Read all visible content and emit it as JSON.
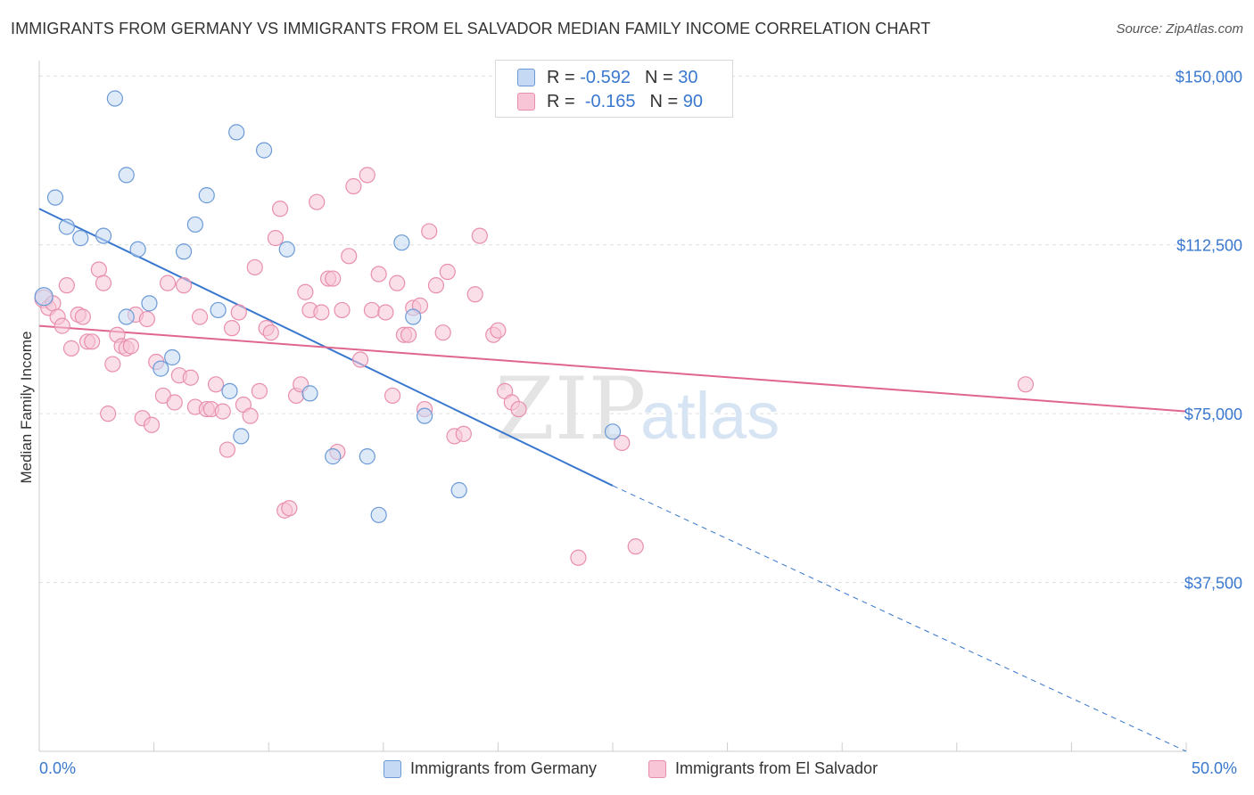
{
  "title": "IMMIGRANTS FROM GERMANY VS IMMIGRANTS FROM EL SALVADOR MEDIAN FAMILY INCOME CORRELATION CHART",
  "source": "Source: ZipAtlas.com",
  "watermark": {
    "zip": "ZIP",
    "atlas": "atlas"
  },
  "colors": {
    "blue": "#3a78cf",
    "blue_fill": "#c5d9f4",
    "blue_stroke": "#6b9ad6",
    "pink": "#e0668f",
    "pink_fill": "#f8c5d6",
    "pink_stroke": "#e88fae",
    "grid": "#dddddd"
  },
  "legend": {
    "blue": {
      "r_label": "R =",
      "r_value": "-0.592",
      "n_label": "N =",
      "n_value": "30"
    },
    "pink": {
      "r_label": "R =",
      "r_value": "-0.165",
      "n_label": "N =",
      "n_value": "90"
    }
  },
  "chart_data": {
    "type": "scatter",
    "title": "IMMIGRANTS FROM GERMANY VS IMMIGRANTS FROM EL SALVADOR MEDIAN FAMILY INCOME CORRELATION CHART",
    "xlabel": "",
    "ylabel": "Median Family Income",
    "xlim": [
      0,
      50
    ],
    "ylim": [
      0,
      155000
    ],
    "x_tick_labels": [
      "0.0%",
      "50.0%"
    ],
    "y_ticks": [
      37500,
      75000,
      112500,
      150000
    ],
    "y_tick_labels": [
      "$37,500",
      "$75,000",
      "$112,500",
      "$150,000"
    ],
    "series": [
      {
        "name": "Immigrants from Germany",
        "color": "blue",
        "points": [
          [
            0.2,
            101000
          ],
          [
            0.7,
            123000
          ],
          [
            1.2,
            116500
          ],
          [
            1.8,
            114000
          ],
          [
            2.8,
            114500
          ],
          [
            3.3,
            145000
          ],
          [
            3.8,
            128000
          ],
          [
            3.8,
            96500
          ],
          [
            4.3,
            111500
          ],
          [
            4.8,
            99500
          ],
          [
            5.3,
            85000
          ],
          [
            5.8,
            87500
          ],
          [
            6.3,
            111000
          ],
          [
            6.8,
            117000
          ],
          [
            7.3,
            123500
          ],
          [
            7.8,
            98000
          ],
          [
            8.3,
            80000
          ],
          [
            8.8,
            70000
          ],
          [
            8.6,
            137500
          ],
          [
            9.8,
            133500
          ],
          [
            10.8,
            111500
          ],
          [
            11.8,
            79500
          ],
          [
            12.8,
            65500
          ],
          [
            14.3,
            65500
          ],
          [
            14.8,
            52500
          ],
          [
            15.8,
            113000
          ],
          [
            16.3,
            96500
          ],
          [
            16.8,
            74500
          ],
          [
            18.3,
            58000
          ],
          [
            25.0,
            71000
          ]
        ],
        "trend": {
          "x0": 0.0,
          "y0": 120500,
          "x1": 25.0,
          "y1": 59000,
          "dash_to_x": 50.0,
          "dash_to_y": 0
        }
      },
      {
        "name": "Immigrants from El Salvador",
        "color": "pink",
        "points": [
          [
            0.2,
            100500
          ],
          [
            0.4,
            98500
          ],
          [
            0.6,
            99500
          ],
          [
            0.8,
            96500
          ],
          [
            1.0,
            94500
          ],
          [
            1.2,
            103500
          ],
          [
            1.4,
            89500
          ],
          [
            1.7,
            97000
          ],
          [
            1.9,
            96500
          ],
          [
            2.1,
            91000
          ],
          [
            2.3,
            91000
          ],
          [
            2.6,
            107000
          ],
          [
            2.8,
            104000
          ],
          [
            3.0,
            75000
          ],
          [
            3.2,
            86000
          ],
          [
            3.4,
            92500
          ],
          [
            3.6,
            90000
          ],
          [
            3.8,
            89500
          ],
          [
            4.0,
            90000
          ],
          [
            4.2,
            97000
          ],
          [
            4.5,
            74000
          ],
          [
            4.7,
            96000
          ],
          [
            4.9,
            72500
          ],
          [
            5.1,
            86500
          ],
          [
            5.4,
            79000
          ],
          [
            5.6,
            104000
          ],
          [
            5.9,
            77500
          ],
          [
            6.1,
            83500
          ],
          [
            6.3,
            103500
          ],
          [
            6.6,
            83000
          ],
          [
            6.8,
            76500
          ],
          [
            7.0,
            96500
          ],
          [
            7.3,
            76000
          ],
          [
            7.5,
            76000
          ],
          [
            7.7,
            81500
          ],
          [
            8.0,
            75500
          ],
          [
            8.2,
            67000
          ],
          [
            8.4,
            94000
          ],
          [
            8.7,
            97500
          ],
          [
            8.9,
            77000
          ],
          [
            9.2,
            74500
          ],
          [
            9.4,
            107500
          ],
          [
            9.6,
            80000
          ],
          [
            9.9,
            94000
          ],
          [
            10.1,
            93000
          ],
          [
            10.3,
            114000
          ],
          [
            10.5,
            120500
          ],
          [
            10.7,
            53500
          ],
          [
            10.9,
            54000
          ],
          [
            11.2,
            79000
          ],
          [
            11.4,
            81500
          ],
          [
            11.6,
            102000
          ],
          [
            11.8,
            98000
          ],
          [
            12.1,
            122000
          ],
          [
            12.3,
            97500
          ],
          [
            12.6,
            105000
          ],
          [
            12.8,
            105000
          ],
          [
            13.0,
            66500
          ],
          [
            13.2,
            98000
          ],
          [
            13.5,
            110000
          ],
          [
            13.7,
            125500
          ],
          [
            14.0,
            87000
          ],
          [
            14.3,
            128000
          ],
          [
            14.5,
            98000
          ],
          [
            14.8,
            106000
          ],
          [
            15.1,
            97500
          ],
          [
            15.4,
            79000
          ],
          [
            15.6,
            104000
          ],
          [
            15.9,
            92500
          ],
          [
            16.1,
            92500
          ],
          [
            16.3,
            98500
          ],
          [
            16.6,
            99000
          ],
          [
            16.8,
            76000
          ],
          [
            17.0,
            115500
          ],
          [
            17.3,
            103500
          ],
          [
            17.6,
            93000
          ],
          [
            17.8,
            106500
          ],
          [
            18.1,
            70000
          ],
          [
            18.5,
            70500
          ],
          [
            19.0,
            101500
          ],
          [
            19.2,
            114500
          ],
          [
            19.8,
            92500
          ],
          [
            20.0,
            93500
          ],
          [
            20.3,
            80000
          ],
          [
            20.6,
            77500
          ],
          [
            20.9,
            76000
          ],
          [
            23.5,
            43000
          ],
          [
            25.4,
            68500
          ],
          [
            26.0,
            45500
          ],
          [
            43.0,
            81500
          ]
        ],
        "trend": {
          "x0": 0.0,
          "y0": 94500,
          "x1": 50.0,
          "y1": 75500
        }
      }
    ]
  },
  "bottom_legend": {
    "blue_label": "Immigrants from Germany",
    "pink_label": "Immigrants from El Salvador"
  }
}
